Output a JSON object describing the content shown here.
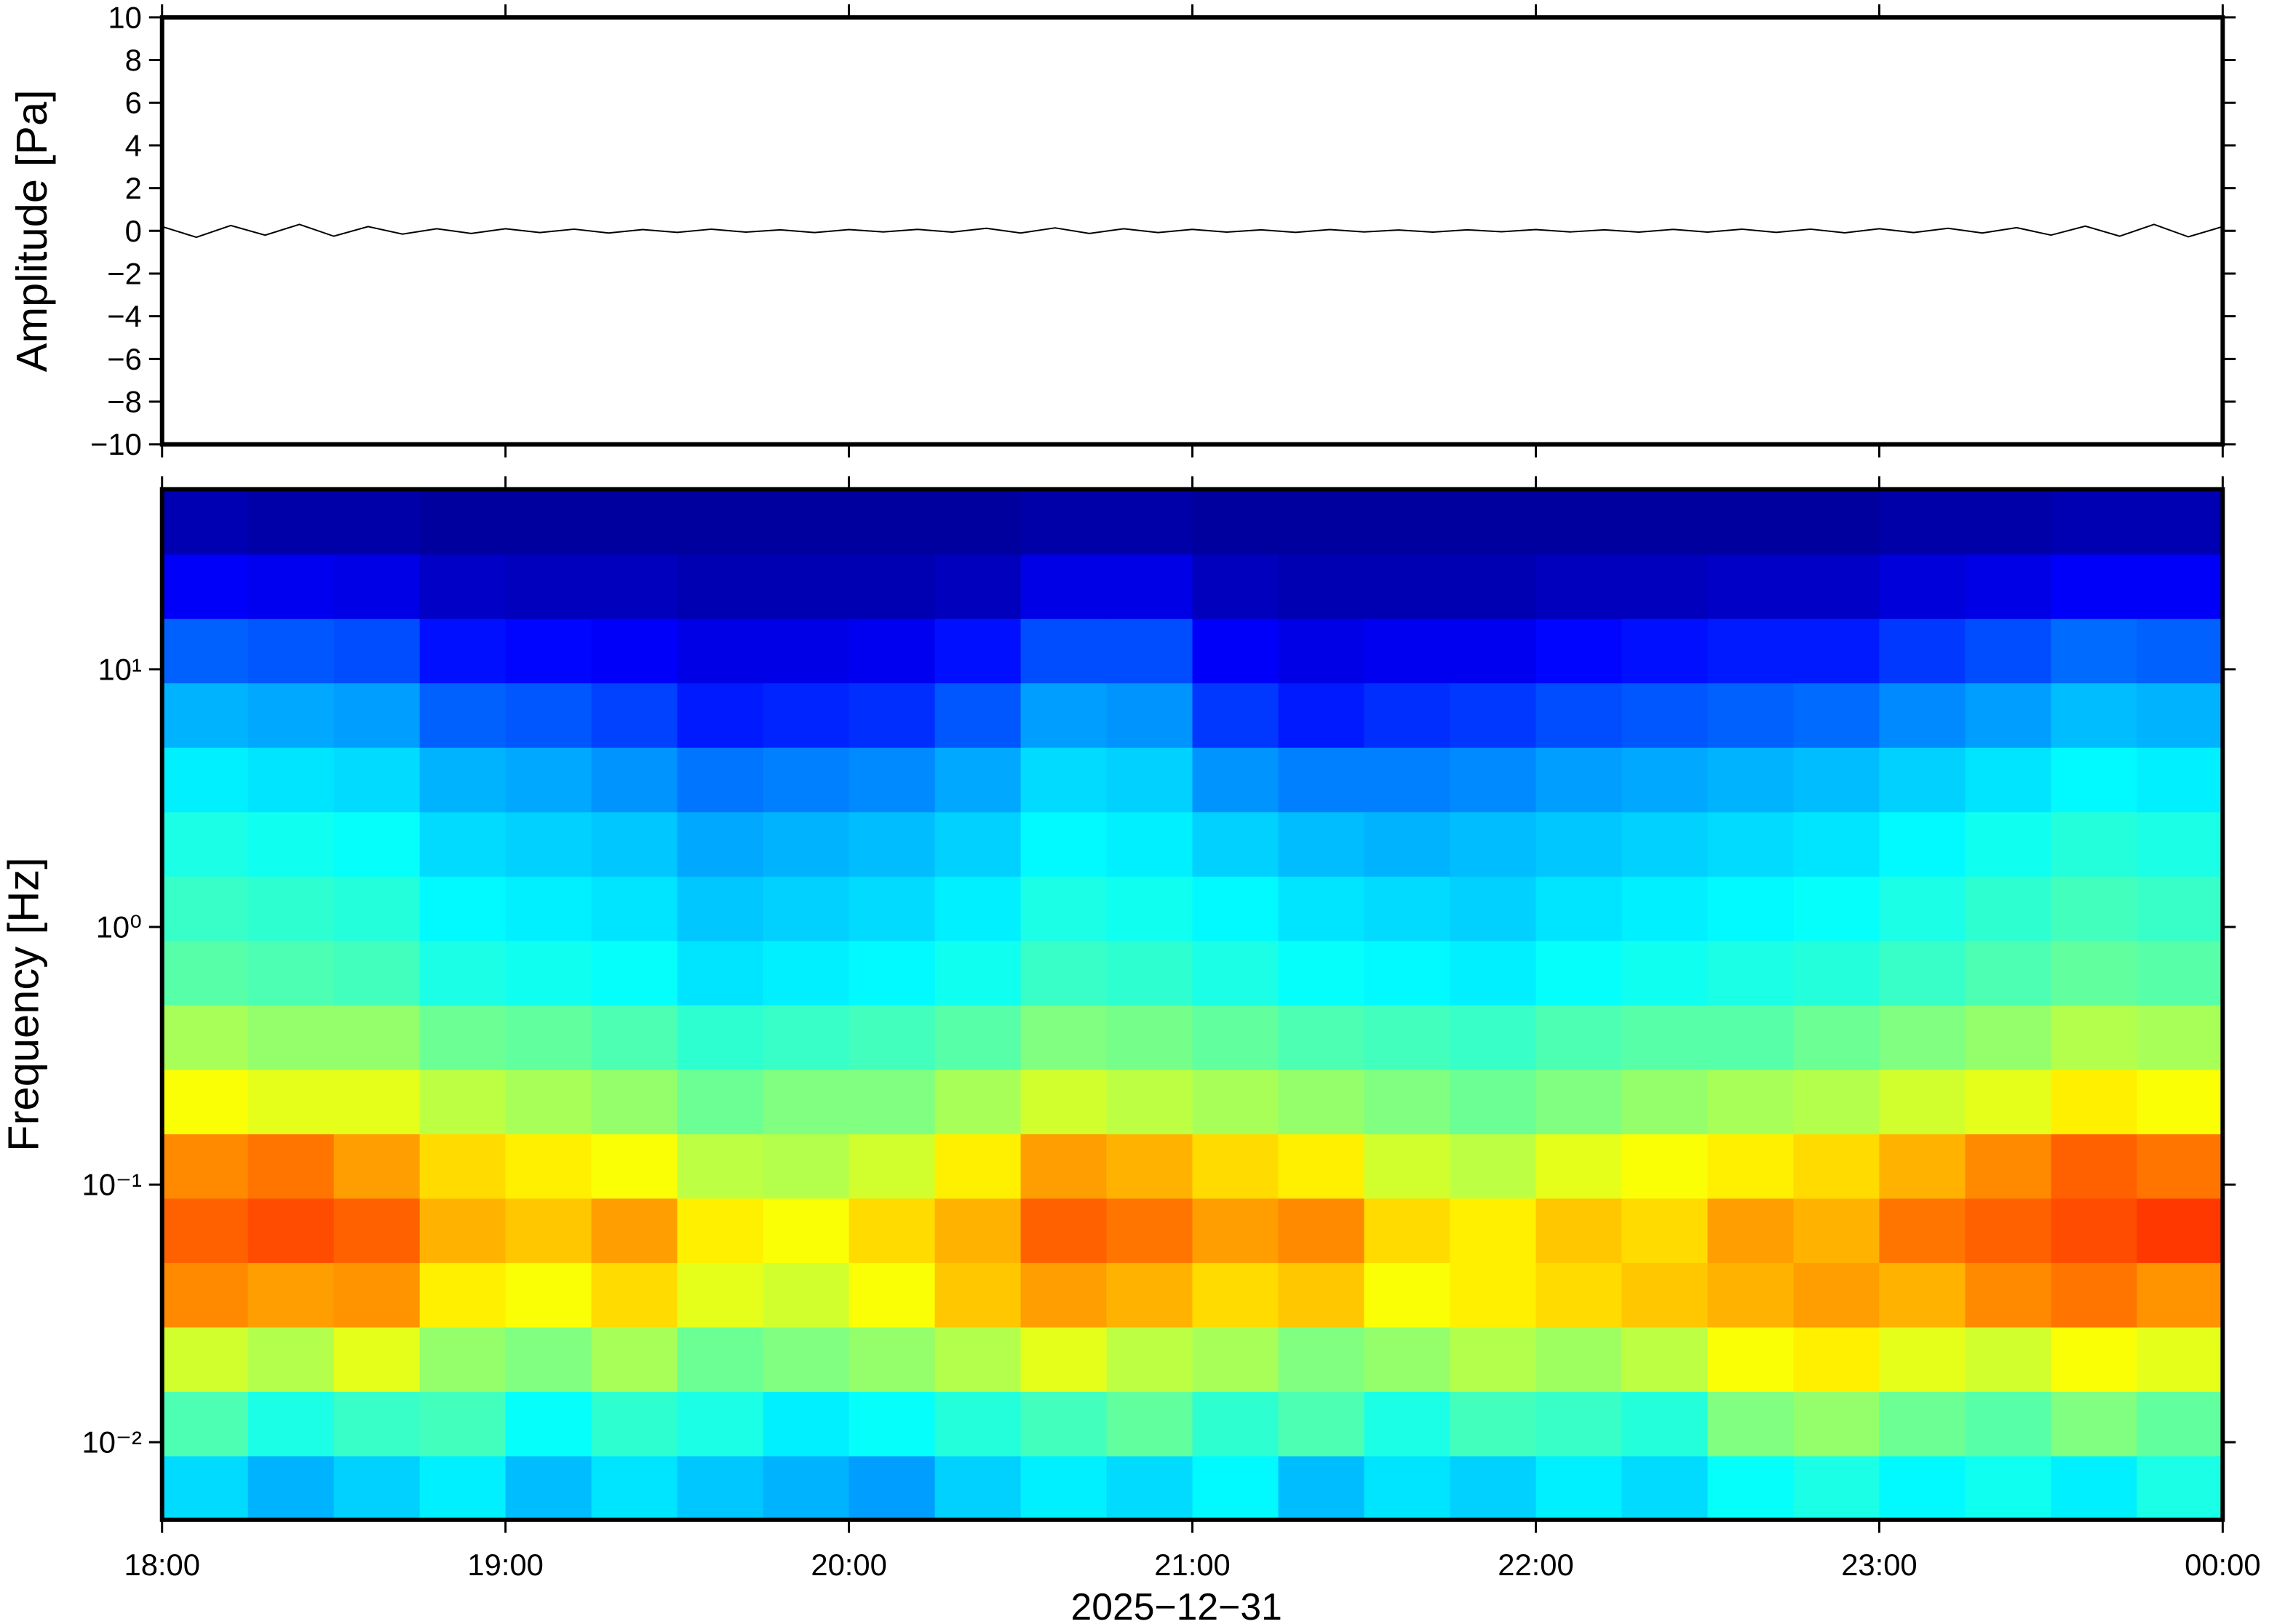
{
  "chart_data": [
    {
      "type": "line",
      "ylabel": "Amplitude [Pa]",
      "color": "#000000",
      "xlim": [
        18,
        24
      ],
      "xticks": [
        18,
        19,
        20,
        21,
        22,
        23,
        24
      ],
      "ylim": [
        -10,
        10
      ],
      "yticks": [
        {
          "value": -10,
          "label": "−10"
        },
        {
          "value": -8,
          "label": "−8"
        },
        {
          "value": -6,
          "label": "−6"
        },
        {
          "value": -4,
          "label": "−4"
        },
        {
          "value": -2,
          "label": "−2"
        },
        0,
        2,
        4,
        6,
        8,
        10
      ],
      "x": [
        18,
        18.1,
        18.2,
        18.3,
        18.4,
        18.5,
        18.6,
        18.7,
        18.8,
        18.9,
        19,
        19.1,
        19.2,
        19.3,
        19.4,
        19.5,
        19.6,
        19.7,
        19.8,
        19.9,
        20,
        20.1,
        20.2,
        20.3,
        20.4,
        20.5,
        20.6,
        20.7,
        20.8,
        20.9,
        21,
        21.1,
        21.2,
        21.3,
        21.4,
        21.5,
        21.6,
        21.7,
        21.8,
        21.9,
        22,
        22.1,
        22.2,
        22.3,
        22.4,
        22.5,
        22.6,
        22.7,
        22.8,
        22.9,
        23,
        23.1,
        23.2,
        23.3,
        23.4,
        23.5,
        23.6,
        23.7,
        23.8,
        23.9,
        24
      ],
      "values": [
        0.2,
        -0.3,
        0.25,
        -0.2,
        0.3,
        -0.25,
        0.2,
        -0.15,
        0.1,
        -0.12,
        0.1,
        -0.08,
        0.08,
        -0.1,
        0.06,
        -0.07,
        0.08,
        -0.06,
        0.05,
        -0.08,
        0.06,
        -0.05,
        0.07,
        -0.06,
        0.12,
        -0.1,
        0.14,
        -0.12,
        0.1,
        -0.08,
        0.07,
        -0.06,
        0.05,
        -0.07,
        0.06,
        -0.05,
        0.04,
        -0.06,
        0.05,
        -0.04,
        0.06,
        -0.05,
        0.05,
        -0.06,
        0.07,
        -0.06,
        0.08,
        -0.07,
        0.08,
        -0.09,
        0.1,
        -0.08,
        0.12,
        -0.1,
        0.15,
        -0.2,
        0.22,
        -0.25,
        0.3,
        -0.28,
        0.2
      ]
    },
    {
      "type": "heatmap",
      "ylabel": "Frequency [Hz]",
      "xlabel": "2025−12−31",
      "yscale": "log",
      "colormap": "jet",
      "zlim": [
        0,
        1
      ],
      "xlim": [
        18,
        24
      ],
      "xticks": [
        {
          "value": 18,
          "label": "18:00"
        },
        {
          "value": 19,
          "label": "19:00"
        },
        {
          "value": 20,
          "label": "20:00"
        },
        {
          "value": 21,
          "label": "21:00"
        },
        {
          "value": 22,
          "label": "22:00"
        },
        {
          "value": 23,
          "label": "23:00"
        },
        {
          "value": 24,
          "label": "00:00"
        }
      ],
      "ylim": [
        0.005,
        50
      ],
      "yticks": [
        {
          "value": 0.01,
          "label": "10⁻²"
        },
        {
          "value": 0.1,
          "label": "10⁻¹"
        },
        {
          "value": 1,
          "label": "10⁰"
        },
        {
          "value": 10,
          "label": "10¹"
        }
      ],
      "xbins": [
        18,
        18.25,
        18.5,
        18.75,
        19,
        19.25,
        19.5,
        19.75,
        20,
        20.25,
        20.5,
        20.75,
        21,
        21.25,
        21.5,
        21.75,
        22,
        22.25,
        22.5,
        22.75,
        23,
        23.25,
        23.5,
        23.75,
        24
      ],
      "ybins": [
        0.005,
        0.00889,
        0.0158,
        0.0281,
        0.05,
        0.0889,
        0.158,
        0.281,
        0.5,
        0.889,
        1.58,
        2.81,
        5,
        8.89,
        15.8,
        28.1,
        50
      ],
      "z": [
        [
          0.34,
          0.3,
          0.33,
          0.36,
          0.31,
          0.35,
          0.32,
          0.3,
          0.28,
          0.33,
          0.36,
          0.34,
          0.37,
          0.31,
          0.35,
          0.33,
          0.36,
          0.34,
          0.38,
          0.4,
          0.37,
          0.39,
          0.36,
          0.4
        ],
        [
          0.45,
          0.4,
          0.43,
          0.44,
          0.38,
          0.42,
          0.4,
          0.36,
          0.38,
          0.41,
          0.44,
          0.47,
          0.42,
          0.45,
          0.4,
          0.44,
          0.43,
          0.41,
          0.5,
          0.52,
          0.48,
          0.46,
          0.5,
          0.47
        ],
        [
          0.58,
          0.55,
          0.6,
          0.52,
          0.5,
          0.54,
          0.48,
          0.5,
          0.52,
          0.55,
          0.6,
          0.56,
          0.54,
          0.5,
          0.52,
          0.55,
          0.53,
          0.56,
          0.62,
          0.64,
          0.6,
          0.58,
          0.62,
          0.6
        ],
        [
          0.74,
          0.72,
          0.73,
          0.64,
          0.62,
          0.66,
          0.6,
          0.58,
          0.62,
          0.68,
          0.72,
          0.7,
          0.66,
          0.68,
          0.62,
          0.64,
          0.66,
          0.68,
          0.7,
          0.72,
          0.7,
          0.74,
          0.76,
          0.73
        ],
        [
          0.78,
          0.8,
          0.78,
          0.7,
          0.68,
          0.72,
          0.64,
          0.62,
          0.66,
          0.7,
          0.78,
          0.76,
          0.72,
          0.74,
          0.66,
          0.64,
          0.68,
          0.66,
          0.72,
          0.7,
          0.76,
          0.78,
          0.8,
          0.82
        ],
        [
          0.74,
          0.76,
          0.72,
          0.66,
          0.64,
          0.62,
          0.56,
          0.55,
          0.58,
          0.64,
          0.72,
          0.7,
          0.66,
          0.64,
          0.58,
          0.56,
          0.6,
          0.62,
          0.64,
          0.66,
          0.7,
          0.74,
          0.78,
          0.76
        ],
        [
          0.62,
          0.6,
          0.6,
          0.56,
          0.54,
          0.52,
          0.48,
          0.5,
          0.5,
          0.54,
          0.58,
          0.56,
          0.54,
          0.52,
          0.5,
          0.48,
          0.5,
          0.52,
          0.54,
          0.55,
          0.58,
          0.6,
          0.64,
          0.62
        ],
        [
          0.54,
          0.52,
          0.52,
          0.48,
          0.47,
          0.45,
          0.42,
          0.43,
          0.44,
          0.46,
          0.5,
          0.49,
          0.47,
          0.45,
          0.44,
          0.43,
          0.45,
          0.46,
          0.46,
          0.48,
          0.5,
          0.52,
          0.55,
          0.54
        ],
        [
          0.46,
          0.45,
          0.44,
          0.4,
          0.39,
          0.38,
          0.35,
          0.36,
          0.37,
          0.39,
          0.43,
          0.42,
          0.4,
          0.38,
          0.37,
          0.36,
          0.38,
          0.39,
          0.4,
          0.41,
          0.43,
          0.45,
          0.47,
          0.46
        ],
        [
          0.43,
          0.42,
          0.41,
          0.37,
          0.36,
          0.35,
          0.32,
          0.33,
          0.34,
          0.36,
          0.4,
          0.39,
          0.37,
          0.35,
          0.34,
          0.33,
          0.35,
          0.36,
          0.37,
          0.38,
          0.4,
          0.42,
          0.44,
          0.43
        ],
        [
          0.4,
          0.39,
          0.38,
          0.34,
          0.33,
          0.32,
          0.29,
          0.3,
          0.31,
          0.33,
          0.37,
          0.36,
          0.33,
          0.31,
          0.3,
          0.31,
          0.32,
          0.33,
          0.34,
          0.35,
          0.37,
          0.39,
          0.41,
          0.4
        ],
        [
          0.36,
          0.35,
          0.34,
          0.3,
          0.29,
          0.27,
          0.24,
          0.25,
          0.26,
          0.29,
          0.34,
          0.33,
          0.27,
          0.25,
          0.25,
          0.26,
          0.28,
          0.29,
          0.3,
          0.31,
          0.33,
          0.35,
          0.37,
          0.36
        ],
        [
          0.3,
          0.29,
          0.28,
          0.22,
          0.21,
          0.19,
          0.15,
          0.16,
          0.17,
          0.21,
          0.28,
          0.27,
          0.18,
          0.15,
          0.17,
          0.18,
          0.2,
          0.21,
          0.22,
          0.23,
          0.26,
          0.28,
          0.31,
          0.3
        ],
        [
          0.22,
          0.21,
          0.2,
          0.14,
          0.13,
          0.12,
          0.1,
          0.1,
          0.11,
          0.14,
          0.2,
          0.2,
          0.12,
          0.1,
          0.11,
          0.11,
          0.13,
          0.14,
          0.15,
          0.15,
          0.18,
          0.2,
          0.23,
          0.22
        ],
        [
          0.12,
          0.11,
          0.1,
          0.07,
          0.06,
          0.06,
          0.05,
          0.05,
          0.05,
          0.06,
          0.1,
          0.1,
          0.06,
          0.05,
          0.05,
          0.05,
          0.06,
          0.06,
          0.07,
          0.07,
          0.09,
          0.1,
          0.12,
          0.12
        ],
        [
          0.05,
          0.04,
          0.04,
          0.03,
          0.03,
          0.03,
          0.03,
          0.03,
          0.03,
          0.03,
          0.04,
          0.04,
          0.03,
          0.03,
          0.03,
          0.03,
          0.03,
          0.03,
          0.03,
          0.03,
          0.04,
          0.04,
          0.05,
          0.05
        ]
      ]
    }
  ]
}
